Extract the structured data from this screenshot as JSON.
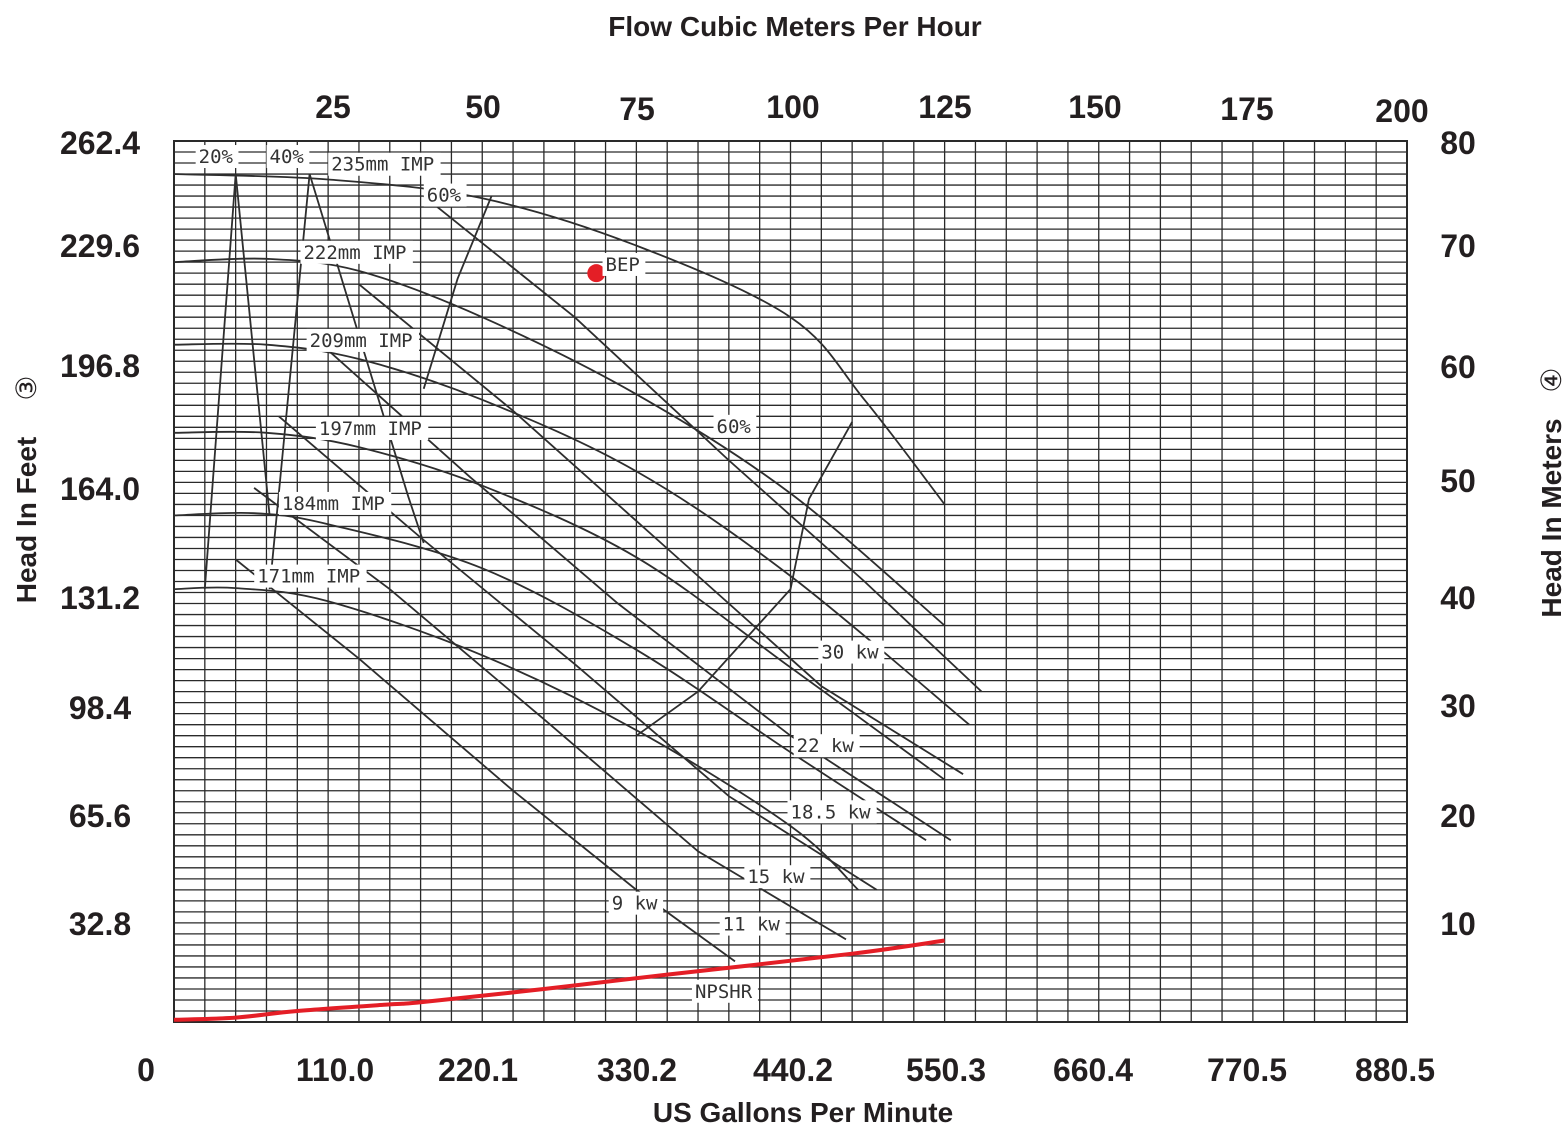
{
  "chart_data": {
    "type": "line",
    "title": "Flow Cubic Meters Per Hour",
    "xlabel": "US Gallons Per Minute",
    "x2label": "Flow Cubic Meters Per Hour",
    "ylabel": "Head In Feet",
    "ylabel_marker": "③",
    "y2label": "Head In Meters",
    "y2label_marker": "④",
    "x_ticks": [
      "0",
      "110.0",
      "220.1",
      "330.2",
      "440.2",
      "550.3",
      "660.4",
      "770.5",
      "880.5"
    ],
    "x2_ticks": [
      "25",
      "50",
      "75",
      "100",
      "125",
      "150",
      "175",
      "200"
    ],
    "y_ticks": [
      "32.8",
      "65.6",
      "98.4",
      "131.2",
      "164.0",
      "196.8",
      "229.6",
      "262.4"
    ],
    "y2_ticks": [
      "10",
      "20",
      "30",
      "40",
      "50",
      "60",
      "70",
      "80"
    ],
    "x2lim": [
      0,
      200
    ],
    "y2lim": [
      0,
      80
    ],
    "grid": true,
    "colors": {
      "grid": "#2a2a2a",
      "curves": "#2e2e2e",
      "npshr": "#e41e26",
      "bep": "#e41e26",
      "text": "#231f20"
    },
    "series": [
      {
        "name": "235mm IMP",
        "kind": "impeller",
        "x": [
          0,
          25,
          50,
          75,
          100,
          112,
          125
        ],
        "y": [
          77,
          76.5,
          74.8,
          70.5,
          64,
          56.5,
          47
        ]
      },
      {
        "name": "222mm IMP",
        "kind": "impeller",
        "x": [
          0,
          15,
          30,
          50,
          75,
          100,
          125
        ],
        "y": [
          69,
          69.3,
          68.2,
          64,
          57,
          48,
          36
        ]
      },
      {
        "name": "209mm IMP",
        "kind": "impeller",
        "x": [
          0,
          15,
          30,
          50,
          75,
          100,
          129
        ],
        "y": [
          61.5,
          61.5,
          60.2,
          56.5,
          50,
          40.5,
          27
        ]
      },
      {
        "name": "197mm IMP",
        "kind": "impeller",
        "x": [
          0,
          15,
          30,
          50,
          75,
          100,
          125
        ],
        "y": [
          53.5,
          53.5,
          52.2,
          48.7,
          42.2,
          32.2,
          22
        ]
      },
      {
        "name": "184mm IMP",
        "kind": "impeller",
        "x": [
          0,
          13,
          25,
          50,
          75,
          100,
          122
        ],
        "y": [
          46,
          46.2,
          45.2,
          41.2,
          33.8,
          24.5,
          16.5
        ]
      },
      {
        "name": "171mm IMP",
        "kind": "impeller",
        "x": [
          0,
          10,
          25,
          50,
          75,
          100,
          111
        ],
        "y": [
          39.3,
          39.4,
          38.2,
          33.3,
          26.5,
          17.8,
          12
        ]
      },
      {
        "name": "20%",
        "kind": "efficiency",
        "x": [
          5,
          10,
          15.5
        ],
        "y": [
          39.3,
          77,
          46
        ]
      },
      {
        "name": "40%",
        "kind": "efficiency",
        "x": [
          15.5,
          22,
          38,
          40.5
        ],
        "y": [
          39.3,
          77,
          47.7,
          43.5
        ]
      },
      {
        "name": "60%",
        "kind": "efficiency",
        "x": [
          40.5,
          46,
          51.5
        ],
        "y": [
          57.5,
          67.5,
          75
        ]
      },
      {
        "name": "60%",
        "kind": "efficiency",
        "x": [
          75,
          85,
          100,
          103,
          110
        ],
        "y": [
          26,
          30,
          39.3,
          47.5,
          54.5
        ]
      },
      {
        "name": "30 kw",
        "kind": "power",
        "x": [
          40.5,
          65,
          90,
          112,
          131
        ],
        "y": [
          75,
          64,
          51,
          40,
          30
        ]
      },
      {
        "name": "22 kw",
        "kind": "power",
        "x": [
          30,
          55,
          80,
          105,
          128
        ],
        "y": [
          67,
          55.5,
          43,
          30.5,
          22.5
        ]
      },
      {
        "name": "18.5 kw",
        "kind": "power",
        "x": [
          22,
          48,
          72,
          100,
          126
        ],
        "y": [
          62.5,
          49.5,
          38,
          26,
          16.5
        ]
      },
      {
        "name": "15 kw",
        "kind": "power",
        "x": [
          17,
          40,
          65,
          90,
          114
        ],
        "y": [
          55,
          44,
          32.5,
          20.5,
          12
        ]
      },
      {
        "name": "11 kw",
        "kind": "power",
        "x": [
          13,
          35,
          60,
          85,
          109
        ],
        "y": [
          48.5,
          39.3,
          27.5,
          15.5,
          7.5
        ]
      },
      {
        "name": "9 kw",
        "kind": "power",
        "x": [
          10,
          30,
          55,
          75,
          91
        ],
        "y": [
          42,
          33,
          21,
          12,
          5.5
        ]
      }
    ],
    "npshr": {
      "name": "NPSHR",
      "x": [
        0,
        10,
        20,
        35,
        40,
        60,
        80,
        110,
        125
      ],
      "y": [
        0.2,
        0.4,
        1.0,
        1.6,
        1.8,
        3.0,
        4.3,
        6.2,
        7.4
      ]
    },
    "bep": {
      "name": "BEP",
      "x": 68.5,
      "y": 68
    },
    "curve_labels": [
      {
        "text": "20%",
        "x": 4,
        "y": 78
      },
      {
        "text": "40%",
        "x": 15.5,
        "y": 78
      },
      {
        "text": "235mm IMP",
        "x": 25.5,
        "y": 77.3
      },
      {
        "text": "60%",
        "x": 41,
        "y": 74.5
      },
      {
        "text": "222mm IMP",
        "x": 21,
        "y": 69.3
      },
      {
        "text": "209mm IMP",
        "x": 22,
        "y": 61.3
      },
      {
        "text": "60%",
        "x": 88,
        "y": 53.5
      },
      {
        "text": "197mm IMP",
        "x": 23.5,
        "y": 53.3
      },
      {
        "text": "184mm IMP",
        "x": 17.5,
        "y": 46.5
      },
      {
        "text": "171mm IMP",
        "x": 13.5,
        "y": 39.9
      },
      {
        "text": "30 kw",
        "x": 105,
        "y": 33
      },
      {
        "text": "22 kw",
        "x": 101,
        "y": 24.5
      },
      {
        "text": "18.5 kw",
        "x": 100,
        "y": 18.5
      },
      {
        "text": "15 kw",
        "x": 93,
        "y": 12.6
      },
      {
        "text": "9 kw",
        "x": 71,
        "y": 10.2
      },
      {
        "text": "11 kw",
        "x": 89,
        "y": 8.3
      },
      {
        "text": "NPSHR",
        "x": 84.5,
        "y": 2.2
      },
      {
        "text": "BEP",
        "x": 70,
        "y": 68.2
      }
    ]
  }
}
